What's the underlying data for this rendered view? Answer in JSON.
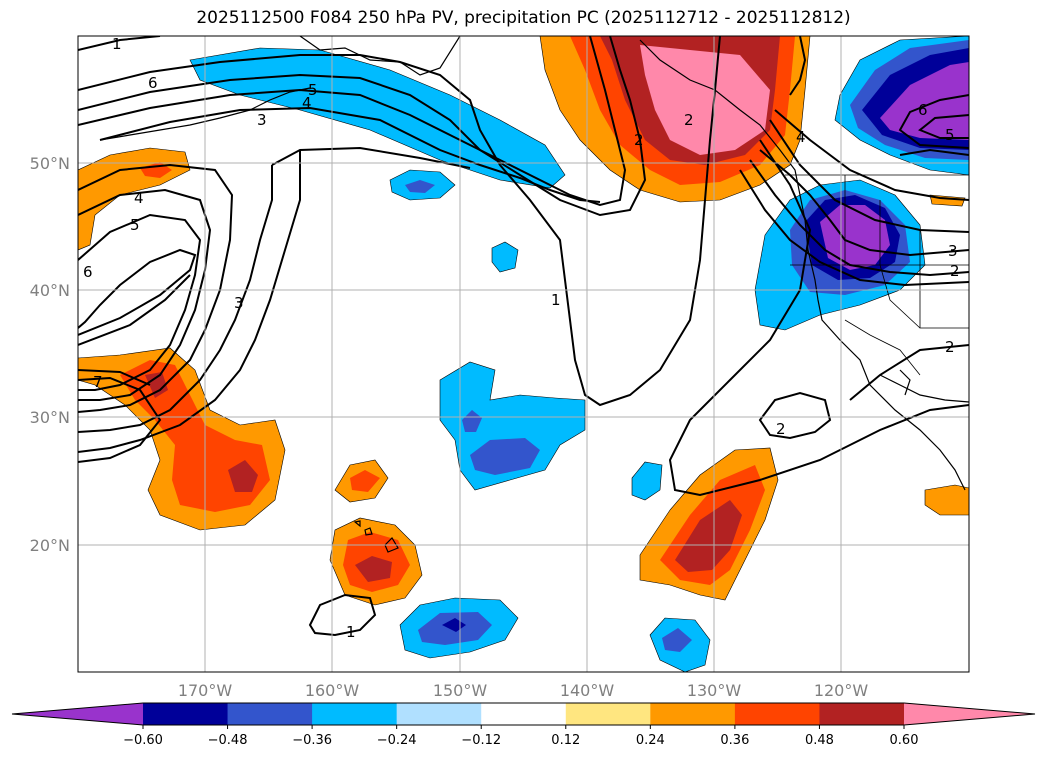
{
  "title": "2025112500 F084 250 hPa PV, precipitation PC (2025112712 - 2025112812)",
  "lat_labels": [
    "50°N",
    "40°N",
    "30°N",
    "20°N"
  ],
  "lon_labels": [
    "170°W",
    "160°W",
    "150°W",
    "140°W",
    "130°W",
    "120°W"
  ],
  "colorbar": {
    "ticks": [
      "−0.60",
      "−0.48",
      "−0.36",
      "−0.24",
      "−0.12",
      "0.12",
      "0.24",
      "0.36",
      "0.48",
      "0.60"
    ],
    "colors": [
      "#9933cc",
      "#000099",
      "#3355cc",
      "#00bbff",
      "#b0e0ff",
      "#ffffff",
      "#ffe680",
      "#ff9900",
      "#ff4400",
      "#b22222",
      "#ff88aa"
    ]
  },
  "contour_labels": [
    "1",
    "6",
    "5",
    "4",
    "3",
    "4",
    "5",
    "6",
    "3",
    "7",
    "1",
    "2",
    "4",
    "2",
    "6",
    "5",
    "3",
    "2",
    "2",
    "2",
    "1"
  ],
  "palette": {
    "purple": "#9933cc",
    "navy": "#000099",
    "blue": "#3355cc",
    "cyan": "#00bbff",
    "yellow": "#ffe680",
    "orange": "#ff9900",
    "red_orange": "#ff4400",
    "dark_red": "#b22222",
    "pink": "#ff88aa"
  }
}
